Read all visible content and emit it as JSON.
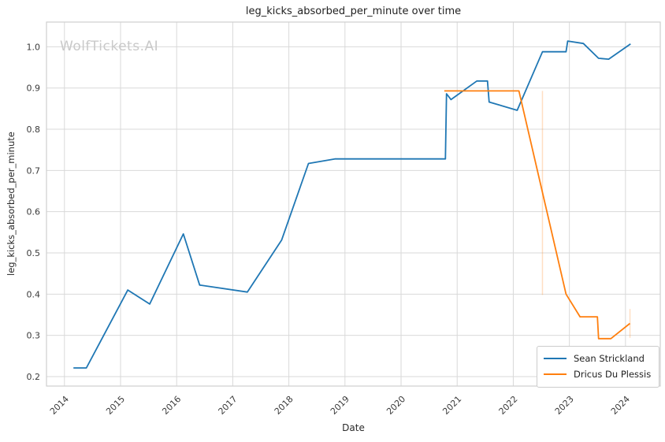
{
  "page": {
    "watermark": "WolfTickets.AI"
  },
  "chart_data": {
    "type": "line",
    "title": "leg_kicks_absorbed_per_minute over time",
    "xlabel": "Date",
    "ylabel": "leg_kicks_absorbed_per_minute",
    "x_ticks": [
      2014,
      2015,
      2016,
      2017,
      2018,
      2019,
      2020,
      2021,
      2022,
      2023,
      2024
    ],
    "y_ticks": [
      0.2,
      0.3,
      0.4,
      0.5,
      0.6,
      0.7,
      0.8,
      0.9,
      1.0
    ],
    "xlim": [
      2013.68,
      2024.62
    ],
    "ylim": [
      0.177,
      1.06
    ],
    "grid": true,
    "grid_color": "#d9d9d9",
    "frame_color": "#cfcfcf",
    "background": "#ffffff",
    "legend_position": "lower right",
    "series": [
      {
        "name": "Sean Strickland",
        "color": "#1f77b4",
        "points": [
          [
            2014.16,
            0.221
          ],
          [
            2014.39,
            0.221
          ],
          [
            2015.13,
            0.41
          ],
          [
            2015.52,
            0.376
          ],
          [
            2016.12,
            0.546
          ],
          [
            2016.41,
            0.422
          ],
          [
            2017.26,
            0.405
          ],
          [
            2017.87,
            0.531
          ],
          [
            2018.35,
            0.717
          ],
          [
            2018.82,
            0.728
          ],
          [
            2020.79,
            0.728
          ],
          [
            2020.81,
            0.886
          ],
          [
            2020.89,
            0.872
          ],
          [
            2021.35,
            0.917
          ],
          [
            2021.54,
            0.917
          ],
          [
            2021.57,
            0.866
          ],
          [
            2022.07,
            0.846
          ],
          [
            2022.52,
            0.988
          ],
          [
            2022.94,
            0.988
          ],
          [
            2022.97,
            1.014
          ],
          [
            2023.25,
            1.008
          ],
          [
            2023.52,
            0.972
          ],
          [
            2023.7,
            0.97
          ],
          [
            2024.09,
            1.007
          ]
        ],
        "error_bars": []
      },
      {
        "name": "Dricus Du Plessis",
        "color": "#ff7f0e",
        "points": [
          [
            2020.77,
            0.893
          ],
          [
            2022.1,
            0.893
          ],
          [
            2022.94,
            0.4
          ],
          [
            2023.19,
            0.345
          ],
          [
            2023.5,
            0.345
          ],
          [
            2023.52,
            0.292
          ],
          [
            2023.74,
            0.292
          ],
          [
            2024.08,
            0.329
          ]
        ],
        "error_bars": [
          {
            "x": 2022.52,
            "y_min": 0.398,
            "y_max": 0.893
          },
          {
            "x": 2024.08,
            "y_min": 0.294,
            "y_max": 0.364
          }
        ]
      }
    ]
  }
}
